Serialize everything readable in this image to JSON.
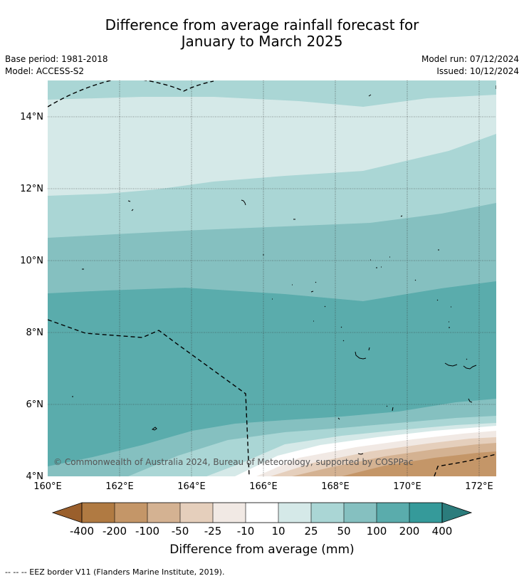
{
  "header": {
    "title_line1": "Difference from average rainfall forecast for",
    "title_line2": "January to March 2025",
    "base_period": "Base period: 1981-2018",
    "model": "Model: ACCESS-S2",
    "model_run": "Model run: 07/12/2024",
    "issued": "Issued: 10/12/2024"
  },
  "map": {
    "lat_labels": [
      "4°N",
      "6°N",
      "8°N",
      "10°N",
      "12°N",
      "14°N"
    ],
    "lon_labels": [
      "160°E",
      "162°E",
      "164°E",
      "166°E",
      "168°E",
      "170°E",
      "172°E"
    ],
    "copyright": "© Commonwealth of Australia 2024, Bureau of Meteorology, supported by COSPPac"
  },
  "colorbar": {
    "tick_labels": [
      "-400",
      "-200",
      "-100",
      "-50",
      "-25",
      "-10",
      "10",
      "25",
      "50",
      "100",
      "200",
      "400"
    ],
    "colors": [
      "#9a5f2c",
      "#b07a42",
      "#c49668",
      "#d4b292",
      "#e5cfbc",
      "#f1e9e4",
      "#ffffff",
      "#d5e9e8",
      "#aad6d5",
      "#85c0c0",
      "#5aacac",
      "#359a9a",
      "#2b7c7c"
    ],
    "title": "Difference from average (mm)"
  },
  "footnote": "--  --  -- EEZ border V11 (Flanders Marine Institute, 2019)."
}
